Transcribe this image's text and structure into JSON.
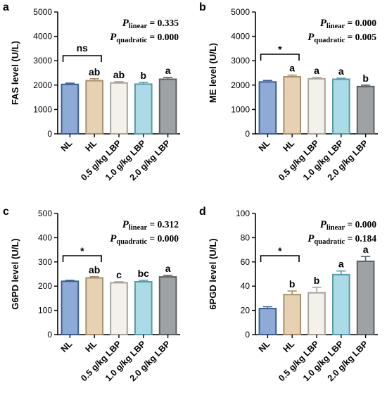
{
  "chart_data": [
    {
      "type": "bar",
      "panel": "a",
      "ylabel": "FAS level (U/L)",
      "ylim": [
        0,
        5000
      ],
      "yticks": [
        0,
        1000,
        2000,
        3000,
        4000,
        5000
      ],
      "categories": [
        "NL",
        "HL",
        "0.5 g/kg LBP",
        "1.0 g/kg LBP",
        "2.0 g/kg LBP"
      ],
      "values": [
        2030,
        2180,
        2090,
        2040,
        2240
      ],
      "errors": [
        50,
        80,
        50,
        70,
        70
      ],
      "letters": [
        "",
        "ab",
        "ab",
        "b",
        "a"
      ],
      "comparison": {
        "label": "ns",
        "from": 0,
        "to": 1
      },
      "stats": {
        "p_linear": "0.335",
        "p_quadratic": "0.000"
      }
    },
    {
      "type": "bar",
      "panel": "b",
      "ylabel": "ME level (U/L)",
      "ylim": [
        0,
        5000
      ],
      "yticks": [
        0,
        1000,
        2000,
        3000,
        4000,
        5000
      ],
      "categories": [
        "NL",
        "HL",
        "0.5 g/kg LBP",
        "1.0 g/kg LBP",
        "2.0 g/kg LBP"
      ],
      "values": [
        2130,
        2340,
        2260,
        2240,
        1940
      ],
      "errors": [
        60,
        70,
        50,
        40,
        60
      ],
      "letters": [
        "",
        "a",
        "a",
        "a",
        "b"
      ],
      "comparison": {
        "label": "*",
        "from": 0,
        "to": 1
      },
      "stats": {
        "p_linear": "0.000",
        "p_quadratic": "0.005"
      }
    },
    {
      "type": "bar",
      "panel": "c",
      "ylabel": "G6PD level (U/L)",
      "ylim": [
        0,
        500
      ],
      "yticks": [
        0,
        100,
        200,
        300,
        400,
        500
      ],
      "categories": [
        "NL",
        "HL",
        "0.5 g/kg LBP",
        "1.0 g/kg LBP",
        "2.0 g/kg LBP"
      ],
      "values": [
        220,
        234,
        214,
        218,
        238
      ],
      "errors": [
        4,
        5,
        4,
        6,
        6
      ],
      "letters": [
        "",
        "ab",
        "c",
        "bc",
        "a"
      ],
      "comparison": {
        "label": "*",
        "from": 0,
        "to": 1
      },
      "stats": {
        "p_linear": "0.312",
        "p_quadratic": "0.000"
      }
    },
    {
      "type": "bar",
      "panel": "d",
      "ylabel": "6PGD level (U/L)",
      "ylim": [
        0,
        100
      ],
      "yticks": [
        0,
        20,
        40,
        60,
        80,
        100
      ],
      "categories": [
        "NL",
        "HL",
        "0.5 g/kg LBP",
        "1.0 g/kg LBP",
        "2.0 g/kg LBP"
      ],
      "values": [
        21.5,
        33,
        34.5,
        49.5,
        60.5
      ],
      "errors": [
        1.5,
        3,
        4.5,
        3,
        4
      ],
      "letters": [
        "",
        "b",
        "b",
        "a",
        "a"
      ],
      "comparison": {
        "label": "*",
        "from": 0,
        "to": 1
      },
      "stats": {
        "p_linear": "0.000",
        "p_quadratic": "0.184"
      }
    }
  ],
  "labels": {
    "p_symbol": "P",
    "linear_sub": "linear",
    "quadratic_sub": "quadratic",
    "eq": " = "
  },
  "colors": {
    "bar_fills": [
      "#8eaad6",
      "#e6d2b2",
      "#f4f0ea",
      "#aadbe6",
      "#9fa2a4"
    ],
    "bar_strokes": [
      "#3d5f95",
      "#a88f6a",
      "#a8a49c",
      "#5a9aaa",
      "#5c5f62"
    ],
    "axis": "#000000"
  }
}
